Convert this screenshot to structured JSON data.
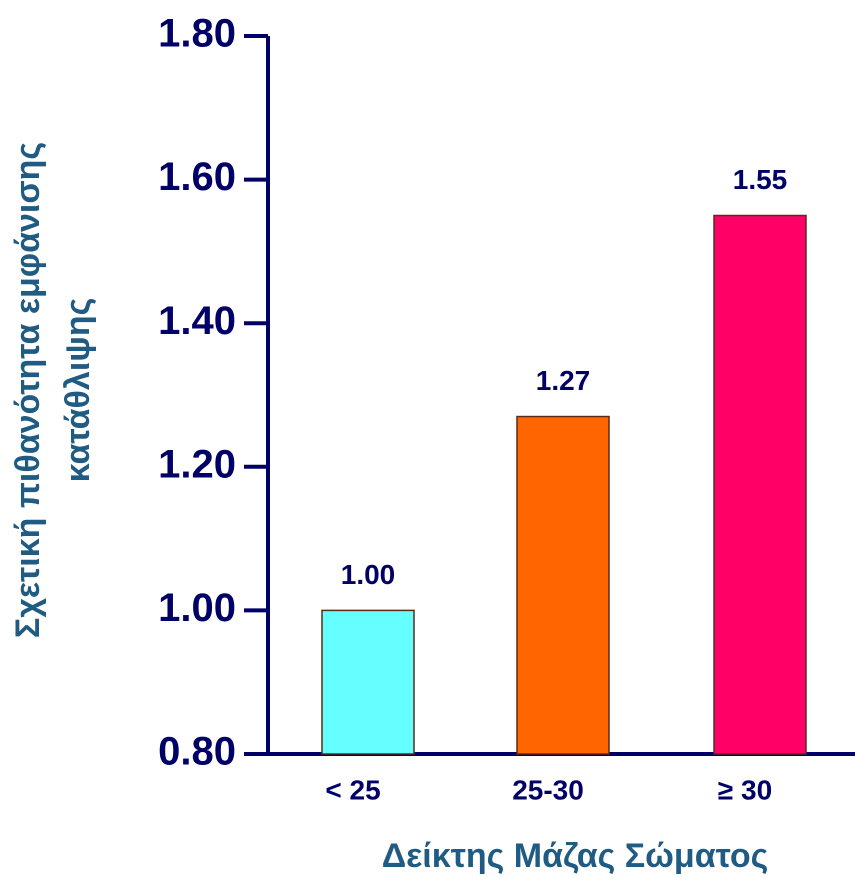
{
  "chart_data": {
    "type": "bar",
    "ylabel": [
      "Σχετική πιθανότητα εμφάνισης",
      "κατάθλιψης"
    ],
    "xlabel": "Δείκτης Μάζας Σώματος",
    "categories": [
      "< 25",
      "25-30",
      "≥ 30"
    ],
    "values": [
      1.0,
      1.27,
      1.55
    ],
    "value_labels": [
      "1.00",
      "1.27",
      "1.55"
    ],
    "colors": [
      "#66ffff",
      "#ff6600",
      "#ff0066"
    ],
    "ylim": [
      0.8,
      1.8
    ],
    "yticks": [
      {
        "value": 0.8,
        "label": "0.80"
      },
      {
        "value": 1.0,
        "label": "1.00"
      },
      {
        "value": 1.2,
        "label": "1.20"
      },
      {
        "value": 1.4,
        "label": "1.40"
      },
      {
        "value": 1.6,
        "label": "1.60"
      },
      {
        "value": 1.8,
        "label": "1.80"
      }
    ]
  }
}
